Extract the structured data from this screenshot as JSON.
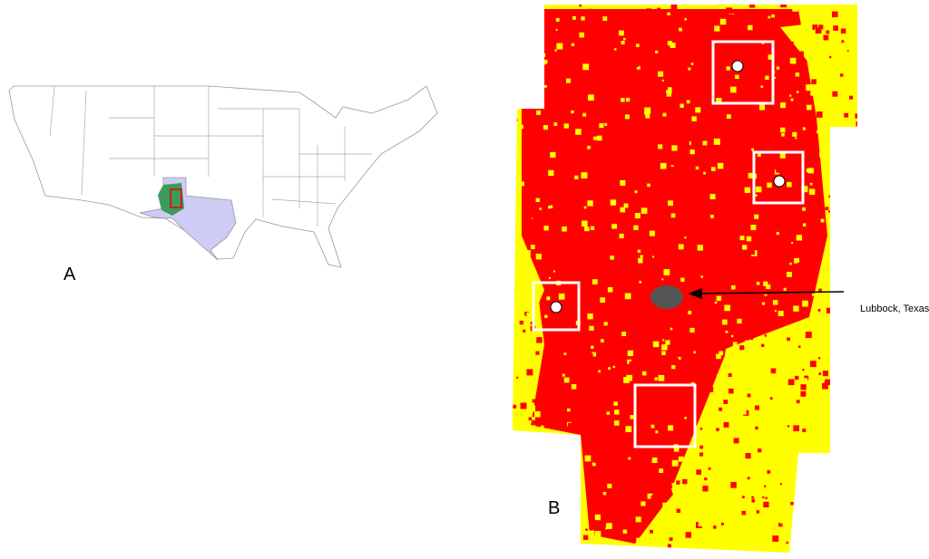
{
  "panel_a": {
    "label": "A"
  },
  "panel_b": {
    "label": "B",
    "annotation": "Lubbock, Texas"
  }
}
